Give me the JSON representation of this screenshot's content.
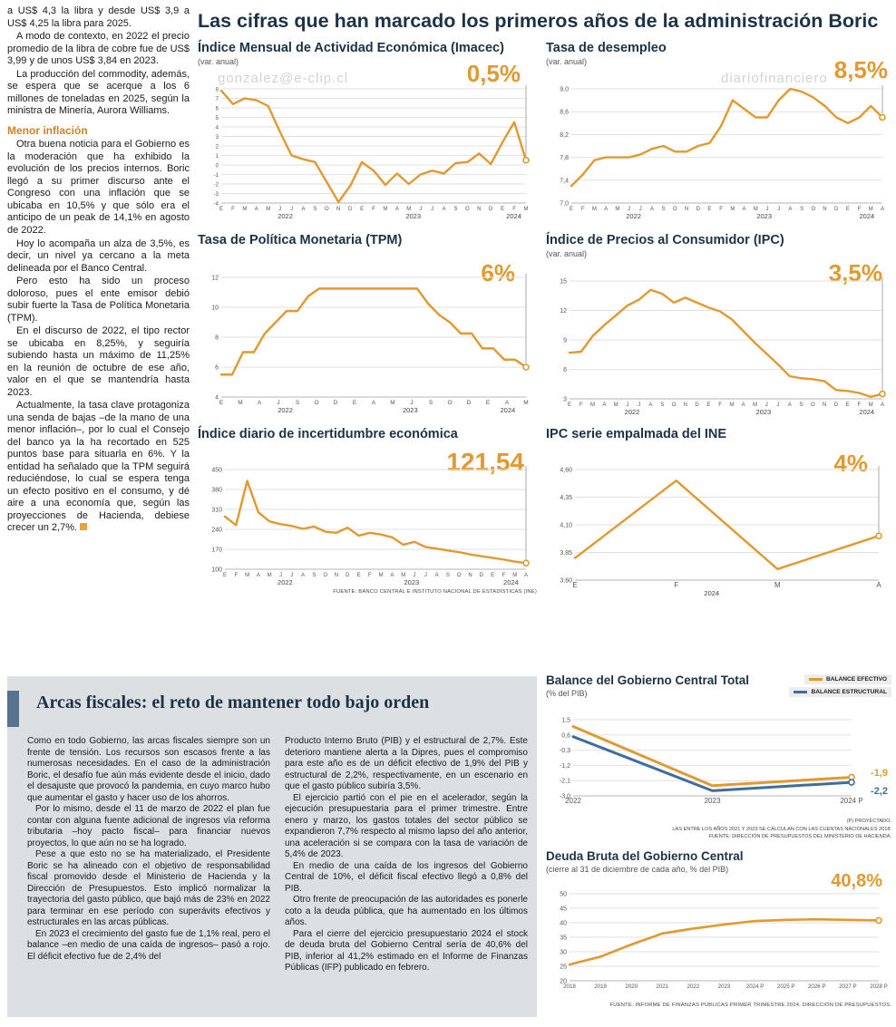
{
  "main_title": "Las cifras que han marcado los primeros años de la administración Boric",
  "watermarks": {
    "wm1": "gonzalez@e-clip.cl",
    "wm2": "diariofinanciero",
    "wm3": "gonzalez@e-clip.cl"
  },
  "copper_article": {
    "p1": "a US$ 4,3 la libra y desde US$ 3,9 a US$ 4,25 la libra para 2025.",
    "p2": "A modo de contexto, en 2022 el precio promedio de la libra de cobre fue de US$ 3,99 y de unos US$ 3,84 en 2023.",
    "p3": "La producción del commodity, además, se espera que se acerque a los 6 millones de toneladas en 2025, según la ministra de Minería, Aurora Williams.",
    "heading": "Menor inflación",
    "p4": "Otra buena noticia para el Gobierno es la moderación que ha exhibido la evolución de los precios internos. Boric llegó a su primer discurso ante el Congreso con una inflación que se ubicaba en 10,5% y que sólo era el anticipo de un peak de 14,1% en agosto de 2022.",
    "p5": "Hoy lo acompaña un alza de 3,5%, es decir, un nivel ya cercano a la meta delineada por el Banco Central.",
    "p6": "Pero esto ha sido un proceso doloroso, pues el ente emisor debió subir fuerte la Tasa de Política Monetaria (TPM).",
    "p7": "En el discurso de 2022, el tipo rector se ubicaba en 8,25%, y seguiría subiendo hasta un máximo de 11,25% en la reunión de octubre de ese año, valor en el que se mantendría hasta 2023.",
    "p8": "Actualmente, la tasa clave protagoniza una senda de bajas –de la mano de una menor inflación–, por lo cual el Consejo del banco ya la ha recortado en 525 puntos base para situarla en 6%. Y la entidad ha señalado que la TPM seguirá reduciéndose, lo cual se espera tenga un efecto positivo en el consumo, y dé aire a una economía que, según las proyecciones de Hacienda, debiese crecer un 2,7%."
  },
  "fiscal": {
    "title": "Arcas fiscales: el reto de mantener todo bajo orden",
    "col1": [
      "Como en todo Gobierno, las arcas fiscales siempre son un frente de tensión. Los recursos son escasos frente a las numerosas necesidades. En el caso de la administración Boric, el desafío fue aún más evidente desde el inicio, dado el desajuste que provocó la pandemia, en cuyo marco hubo que aumentar el gasto y hacer uso de los ahorros.",
      "Por lo mismo, desde el 11 de marzo de 2022 el plan fue contar con alguna fuente adicional de ingresos vía reforma tributaria –hoy pacto fiscal– para financiar nuevos proyectos, lo que aún no se ha logrado.",
      "Pese a que esto no se ha materializado, el Presidente Boric se ha alineado con el objetivo de responsabilidad fiscal promovido desde el Ministerio de Hacienda y la Dirección de Presupuestos. Esto implicó normalizar la trayectoria del gasto público, que bajó más de 23% en 2022 para terminar en ese período con superávits efectivos y estructurales en las arcas públicas.",
      "En 2023 el crecimiento del gasto fue de 1,1% real, pero el balance –en medio de una caída de ingresos– pasó a rojo. El déficit efectivo fue de 2,4% del"
    ],
    "col2": [
      "Producto Interno Bruto (PIB) y el estructural de 2,7%. Este deterioro mantiene alerta a la Dipres, pues el compromiso para este año es de un déficit efectivo de 1,9% del PIB y estructural de 2,2%, respectivamente, en un escenario en que el gasto público subiría 3,5%.",
      "El ejercicio partió con el pie en el acelerador, según la ejecución presupuestaria para el primer trimestre. Entre enero y marzo, los gastos totales del sector público se expandieron 7,7% respecto al mismo lapso del año anterior, una aceleración si se compara con la tasa de variación de 5,4% de 2023.",
      "En medio de una caída de los ingresos del Gobierno Central de 10%, el déficit fiscal efectivo llegó a 0,8% del PIB.",
      "Otro frente de preocupación de las autoridades es ponerle coto a la deuda pública, que ha aumentado en los últimos años.",
      "Para el cierre del ejercicio presupuestario 2024 el stock de deuda bruta del Gobierno Central sería de 40,6% del PIB, inferior al 41,2% estimado en el Informe de Finanzas Públicas (IFP) publicado en febrero."
    ]
  },
  "chart_data": [
    {
      "type": "line",
      "title": "Índice Mensual de Actividad Económica (Imacec)",
      "subtitle": "(var. anual)",
      "big_label": "0,5%",
      "ylim": [
        -4,
        8
      ],
      "ysize": 6,
      "yticks": [
        {
          "v": 8,
          "label": "8"
        },
        {
          "v": 7,
          "label": "7"
        },
        {
          "v": 6,
          "label": "6"
        },
        {
          "v": 5,
          "label": "5"
        },
        {
          "v": 4,
          "label": "4"
        },
        {
          "v": 3,
          "label": "3"
        },
        {
          "v": 2,
          "label": "2"
        },
        {
          "v": 1,
          "label": "1"
        },
        {
          "v": 0,
          "label": "0"
        },
        {
          "v": -1,
          "label": "-1"
        },
        {
          "v": -2,
          "label": "-2"
        },
        {
          "v": -3,
          "label": "-3"
        },
        {
          "v": -4,
          "label": "-4"
        }
      ],
      "xlabels": [
        "E",
        "F",
        "M",
        "A",
        "M",
        "J",
        "J",
        "A",
        "S",
        "O",
        "N",
        "D",
        "E",
        "F",
        "M",
        "A",
        "M",
        "J",
        "J",
        "A",
        "S",
        "O",
        "N",
        "D",
        "E",
        "F",
        "M"
      ],
      "years": [
        {
          "label": "2022",
          "pos": 0.21
        },
        {
          "label": "2023",
          "pos": 0.63
        },
        {
          "label": "2024",
          "pos": 0.96
        }
      ],
      "series": [
        {
          "name": "Imacec",
          "color": "#E2992F",
          "values": [
            7.8,
            6.4,
            7.0,
            6.8,
            6.2,
            3.5,
            1.0,
            0.6,
            0.3,
            -1.8,
            -3.9,
            -2.2,
            0.3,
            -0.6,
            -2.1,
            -0.9,
            -2.0,
            -1.0,
            -0.6,
            -0.9,
            0.2,
            0.3,
            1.2,
            0.1,
            2.4,
            4.5,
            0.5
          ]
        }
      ],
      "endmark": true
    },
    {
      "type": "line",
      "title": "Tasa de desempleo",
      "subtitle": "(var. anual)",
      "big_label": "8,5%",
      "ylim": [
        7.0,
        9.0
      ],
      "yticks": [
        {
          "v": 9.0,
          "label": "9,0"
        },
        {
          "v": 8.6,
          "label": "8,6"
        },
        {
          "v": 8.2,
          "label": "8,2"
        },
        {
          "v": 7.8,
          "label": "7,8"
        },
        {
          "v": 7.4,
          "label": "7,4"
        },
        {
          "v": 7.0,
          "label": "7,0"
        }
      ],
      "xlabels": [
        "E",
        "F",
        "M",
        "A",
        "M",
        "J",
        "J",
        "A",
        "S",
        "O",
        "N",
        "D",
        "E",
        "F",
        "M",
        "A",
        "M",
        "J",
        "J",
        "A",
        "S",
        "O",
        "N",
        "D",
        "E",
        "F",
        "M",
        "A"
      ],
      "years": [
        {
          "label": "2022",
          "pos": 0.2
        },
        {
          "label": "2023",
          "pos": 0.62
        },
        {
          "label": "2024",
          "pos": 0.95
        }
      ],
      "series": [
        {
          "name": "Desempleo",
          "color": "#E2992F",
          "values": [
            7.3,
            7.5,
            7.75,
            7.8,
            7.8,
            7.8,
            7.85,
            7.95,
            8.0,
            7.9,
            7.9,
            8.0,
            8.05,
            8.35,
            8.8,
            8.65,
            8.5,
            8.5,
            8.8,
            9.0,
            8.95,
            8.85,
            8.7,
            8.5,
            8.4,
            8.5,
            8.7,
            8.5
          ]
        }
      ],
      "endmark": true,
      "margins": {
        "l": 28
      }
    },
    {
      "type": "line",
      "title": "Tasa de Política Monetaria (TPM)",
      "subtitle": "",
      "big_label": "6%",
      "ylim": [
        4,
        12
      ],
      "yticks": [
        {
          "v": 12,
          "label": "12"
        },
        {
          "v": 10,
          "label": "10"
        },
        {
          "v": 8,
          "label": "8"
        },
        {
          "v": 6,
          "label": "6"
        },
        {
          "v": 4,
          "label": "4"
        }
      ],
      "xlabels": [
        "E",
        "M",
        "A",
        "J",
        "S",
        "O",
        "D",
        "E",
        "A",
        "M",
        "J",
        "S",
        "O",
        "D",
        "E",
        "A",
        "M"
      ],
      "xsize": 6.5,
      "years": [
        {
          "label": "2022",
          "pos": 0.21
        },
        {
          "label": "2023",
          "pos": 0.62
        },
        {
          "label": "2024",
          "pos": 0.94
        }
      ],
      "series": [
        {
          "name": "TPM",
          "color": "#E2992F",
          "values": [
            5.5,
            5.5,
            7.0,
            7.0,
            8.25,
            9.0,
            9.75,
            9.75,
            10.75,
            11.25,
            11.25,
            11.25,
            11.25,
            11.25,
            11.25,
            11.25,
            11.25,
            11.25,
            11.25,
            10.25,
            9.5,
            9.0,
            8.25,
            8.25,
            7.25,
            7.25,
            6.5,
            6.5,
            6.0
          ]
        }
      ],
      "endmark": true
    },
    {
      "type": "line",
      "title": "Índice de Precios al Consumidor (IPC)",
      "subtitle": "(var. anual)",
      "big_label": "3,5%",
      "ylim": [
        3,
        15
      ],
      "yticks": [
        {
          "v": 15,
          "label": "15"
        },
        {
          "v": 12,
          "label": "12"
        },
        {
          "v": 9,
          "label": "9"
        },
        {
          "v": 6,
          "label": "6"
        },
        {
          "v": 3,
          "label": "3"
        }
      ],
      "xlabels": [
        "E",
        "F",
        "M",
        "A",
        "M",
        "J",
        "J",
        "A",
        "S",
        "O",
        "N",
        "D",
        "E",
        "F",
        "M",
        "A",
        "M",
        "J",
        "J",
        "A",
        "S",
        "O",
        "N",
        "D",
        "E",
        "F",
        "M",
        "A"
      ],
      "years": [
        {
          "label": "2022",
          "pos": 0.2
        },
        {
          "label": "2023",
          "pos": 0.62
        },
        {
          "label": "2024",
          "pos": 0.95
        }
      ],
      "series": [
        {
          "name": "IPC",
          "color": "#E2992F",
          "values": [
            7.7,
            7.8,
            9.4,
            10.5,
            11.5,
            12.5,
            13.1,
            14.1,
            13.7,
            12.8,
            13.3,
            12.8,
            12.3,
            11.9,
            11.1,
            9.9,
            8.7,
            7.6,
            6.5,
            5.3,
            5.1,
            5.0,
            4.8,
            3.9,
            3.8,
            3.6,
            3.2,
            3.5
          ]
        }
      ],
      "endmark": true
    },
    {
      "type": "line",
      "title": "Índice diario de incertidumbre económica",
      "subtitle": "",
      "big_label": "121,54",
      "ylim": [
        100,
        450
      ],
      "yticks": [
        {
          "v": 450,
          "label": "450"
        },
        {
          "v": 380,
          "label": "380"
        },
        {
          "v": 310,
          "label": "310"
        },
        {
          "v": 240,
          "label": "240"
        },
        {
          "v": 170,
          "label": "170"
        },
        {
          "v": 100,
          "label": "100"
        }
      ],
      "xlabels": [
        "E",
        "F",
        "M",
        "A",
        "M",
        "J",
        "J",
        "A",
        "S",
        "O",
        "N",
        "D",
        "E",
        "F",
        "M",
        "A",
        "M",
        "J",
        "J",
        "A",
        "S",
        "O",
        "N",
        "D",
        "E",
        "F",
        "M",
        "A"
      ],
      "years": [
        {
          "label": "2022",
          "pos": 0.2
        },
        {
          "label": "2023",
          "pos": 0.62
        },
        {
          "label": "2024",
          "pos": 0.95
        }
      ],
      "series": [
        {
          "name": "Incertidumbre",
          "color": "#E2992F",
          "values": [
            285,
            255,
            410,
            300,
            268,
            258,
            252,
            242,
            250,
            232,
            228,
            246,
            218,
            228,
            222,
            212,
            186,
            196,
            178,
            172,
            166,
            160,
            152,
            146,
            140,
            134,
            127,
            121.54
          ]
        }
      ],
      "endmark": true,
      "source": "FUENTE: BANCO CENTRAL E INSTITUTO NACIONAL DE ESTADÍSTICAS (INE)",
      "margins": {
        "l": 30
      }
    },
    {
      "type": "line",
      "title": "IPC serie empalmada del INE",
      "subtitle": "",
      "big_label": "4%",
      "ylim": [
        3.6,
        4.6
      ],
      "yticks": [
        {
          "v": 4.6,
          "label": "4,60"
        },
        {
          "v": 4.35,
          "label": "4,35"
        },
        {
          "v": 4.1,
          "label": "4,10"
        },
        {
          "v": 3.85,
          "label": "3,85"
        },
        {
          "v": 3.6,
          "label": "3,60"
        }
      ],
      "xlabels": [
        "E",
        "F",
        "M",
        "A"
      ],
      "xsize": 8,
      "years": [
        {
          "label": "2024",
          "pos": 0.45
        }
      ],
      "series": [
        {
          "name": "IPC INE",
          "color": "#E2992F",
          "values": [
            3.8,
            4.5,
            3.7,
            4.0
          ]
        }
      ],
      "endmark": true,
      "margins": {
        "l": 32,
        "r": 16
      }
    },
    {
      "type": "line",
      "title": "Balance del Gobierno Central Total",
      "subtitle": "(% del PIB)",
      "ylim": [
        -3.0,
        1.5
      ],
      "yticks": [
        {
          "v": 1.5,
          "label": "1,5"
        },
        {
          "v": 0.6,
          "label": "0,6"
        },
        {
          "v": -0.3,
          "label": "-0,3"
        },
        {
          "v": -1.2,
          "label": "-1,2"
        },
        {
          "v": -2.1,
          "label": "-2,1"
        },
        {
          "v": -3.0,
          "label": "-3,0"
        }
      ],
      "xlabels": [
        "2022",
        "2023",
        "2024 P"
      ],
      "xsize": 8,
      "series": [
        {
          "name": "BALANCE EFECTIVO",
          "color": "#E2992F",
          "width": 3,
          "values": [
            1.1,
            -2.4,
            -1.9
          ]
        },
        {
          "name": "BALANCE ESTRUCTURAL",
          "color": "#3F6E9E",
          "width": 3,
          "values": [
            0.5,
            -2.7,
            -2.2
          ]
        }
      ],
      "endmark": true,
      "dash": false,
      "end_labels": [
        {
          "text": "-1,9"
        },
        {
          "text": "-2,2"
        }
      ],
      "notes": [
        "(P) PROYECTADO.",
        "LAS ENTRE LOS AÑOS 2021 Y 2023 SE CALCULAN CON LAS CUENTAS NACIONALES 2018.",
        "FUENTE: DIRECCIÓN DE PRESUPUESTOS DEL MINISTERIO DE HACIENDA."
      ],
      "margins": {
        "l": 30,
        "r": 44
      }
    },
    {
      "type": "line",
      "title": "Deuda Bruta del Gobierno Central",
      "subtitle": "(cierre al 31 de diciembre de cada año, % del PIB)",
      "big_label": "40,8%",
      "ylim": [
        20,
        50
      ],
      "yticks": [
        {
          "v": 50,
          "label": "50"
        },
        {
          "v": 45,
          "label": "45"
        },
        {
          "v": 40,
          "label": "40"
        },
        {
          "v": 35,
          "label": "35"
        },
        {
          "v": 30,
          "label": "30"
        },
        {
          "v": 25,
          "label": "25"
        },
        {
          "v": 20,
          "label": "20"
        }
      ],
      "xlabels": [
        "2018",
        "2019",
        "2020",
        "2021",
        "2022",
        "2023",
        "2024 P",
        "2025 P",
        "2026 P",
        "2027 P",
        "2028 P"
      ],
      "xsize": 6.2,
      "series": [
        {
          "name": "Deuda bruta",
          "color": "#E2992F",
          "width": 2.6,
          "values": [
            25.6,
            28.3,
            32.5,
            36.3,
            38.0,
            39.4,
            40.6,
            41.0,
            41.2,
            41.0,
            40.8
          ]
        }
      ],
      "endmark": true,
      "dash": false,
      "source": "FUENTE: INFORME DE FINANZAS PÚBLICAS PRIMER TRIMESTRE 2024, DIRECCIÓN DE PRESUPUESTOS.",
      "margins": {
        "l": 26,
        "r": 14
      }
    }
  ]
}
